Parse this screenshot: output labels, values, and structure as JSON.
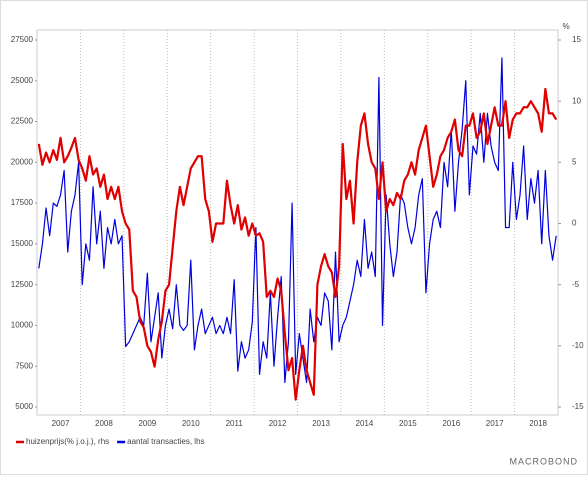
{
  "chart_data": {
    "type": "line",
    "categories": [
      null,
      null,
      null,
      null,
      null,
      null,
      "2007",
      null,
      null,
      null,
      null,
      null,
      null,
      null,
      null,
      null,
      null,
      null,
      "2008",
      null,
      null,
      null,
      null,
      null,
      null,
      null,
      null,
      null,
      null,
      null,
      "2009",
      null,
      null,
      null,
      null,
      null,
      null,
      null,
      null,
      null,
      null,
      null,
      "2010",
      null,
      null,
      null,
      null,
      null,
      null,
      null,
      null,
      null,
      null,
      null,
      "2011",
      null,
      null,
      null,
      null,
      null,
      null,
      null,
      null,
      null,
      null,
      null,
      "2012",
      null,
      null,
      null,
      null,
      null,
      null,
      null,
      null,
      null,
      null,
      null,
      "2013",
      null,
      null,
      null,
      null,
      null,
      null,
      null,
      null,
      null,
      null,
      null,
      "2014",
      null,
      null,
      null,
      null,
      null,
      null,
      null,
      null,
      null,
      null,
      null,
      "2015",
      null,
      null,
      null,
      null,
      null,
      null,
      null,
      null,
      null,
      null,
      null,
      "2016",
      null,
      null,
      null,
      null,
      null,
      null,
      null,
      null,
      null,
      null,
      null,
      "2017",
      null,
      null,
      null,
      null,
      null,
      null,
      null,
      null,
      null,
      null,
      null,
      "2018",
      null,
      null,
      null,
      null,
      null
    ],
    "series": [
      {
        "name": "huizenprijs(% j.o.j.), rhs",
        "color": "#e00000",
        "axis": "y2",
        "values": [
          6.5,
          4.8,
          5.8,
          5.0,
          6.0,
          5.2,
          7.0,
          5.0,
          5.5,
          6.2,
          7.0,
          5.2,
          4.5,
          3.5,
          5.5,
          4.0,
          4.5,
          3.0,
          4.0,
          2.0,
          3.0,
          2.0,
          3.0,
          1.0,
          0,
          -0.5,
          -5.5,
          -6,
          -8,
          -8.5,
          -10,
          -10.5,
          -11.7,
          -9.5,
          -8,
          -5.5,
          -5,
          -2,
          1,
          3,
          1.5,
          3,
          4.5,
          5,
          5.5,
          5.5,
          2,
          1,
          -1.5,
          0,
          0,
          0,
          3.5,
          1.5,
          0,
          1.5,
          -0.5,
          0.5,
          -1,
          0,
          -1,
          -0.8,
          -1.5,
          -6,
          -5.5,
          -6,
          -4.5,
          -5.5,
          -9,
          -12,
          -11,
          -14.4,
          -12,
          -10,
          -12,
          -13,
          -14,
          -5,
          -3.5,
          -2.5,
          -3.5,
          -4,
          -6,
          -3.5,
          6.5,
          2,
          3.5,
          0,
          5,
          8,
          9,
          6.5,
          5,
          4.5,
          2,
          5,
          1,
          2,
          1.5,
          2.5,
          2,
          3.5,
          4,
          5,
          4,
          6,
          7,
          8,
          5.5,
          3,
          4,
          5.5,
          6,
          7,
          7.5,
          8.5,
          6,
          5.5,
          8,
          8,
          9,
          7,
          7.5,
          9,
          6.5,
          8,
          9.5,
          8,
          8,
          10,
          7,
          8.5,
          9,
          9,
          9.5,
          9.5,
          10,
          9.5,
          9,
          7.5,
          11,
          9,
          9,
          8.5
        ]
      },
      {
        "name": "aantal transacties, lhs",
        "color": "#0000dd",
        "values": [
          13500,
          15000,
          17200,
          15500,
          17500,
          17300,
          18000,
          19500,
          14500,
          17000,
          18000,
          20000,
          12500,
          15000,
          14000,
          18500,
          15000,
          17000,
          13500,
          16000,
          15000,
          16500,
          15000,
          15500,
          8700,
          9000,
          9500,
          10000,
          10500,
          10000,
          13200,
          9000,
          10500,
          12000,
          8000,
          10000,
          11000,
          9800,
          12500,
          10000,
          9700,
          10000,
          14000,
          8500,
          10000,
          11000,
          9500,
          10000,
          10500,
          9500,
          10000,
          9500,
          10500,
          9500,
          12800,
          7200,
          9000,
          8000,
          8500,
          10200,
          16000,
          7000,
          9000,
          8000,
          12000,
          7500,
          10500,
          13000,
          6500,
          9000,
          17500,
          7000,
          9500,
          8000,
          6500,
          11000,
          9000,
          10500,
          10000,
          12000,
          11500,
          8500,
          14500,
          9000,
          10000,
          10500,
          11500,
          12500,
          14000,
          13000,
          16500,
          13500,
          14500,
          13000,
          25200,
          10000,
          18000,
          15000,
          13000,
          14500,
          18000,
          17500,
          16000,
          15000,
          16000,
          18000,
          19000,
          12000,
          15000,
          16500,
          17000,
          16000,
          20000,
          18500,
          22000,
          17000,
          20000,
          22000,
          25000,
          18000,
          21000,
          20500,
          23000,
          20000,
          23000,
          21000,
          20000,
          19500,
          26400,
          16000,
          16000,
          20000,
          16500,
          18000,
          21000,
          16500,
          19000,
          17500,
          19500,
          15000,
          19500,
          15500,
          14000,
          15500
        ]
      }
    ],
    "ylim": [
      5000,
      27500
    ],
    "yticks": [
      5000,
      7500,
      10000,
      12500,
      15000,
      17500,
      20000,
      22500,
      25000,
      27500
    ],
    "y2lim": [
      -15,
      15
    ],
    "y2ticks": [
      -15,
      -10,
      -5,
      0,
      5,
      10,
      15
    ],
    "y2_label": "%",
    "legend": "bottom-left",
    "brand": "MACROBOND"
  }
}
